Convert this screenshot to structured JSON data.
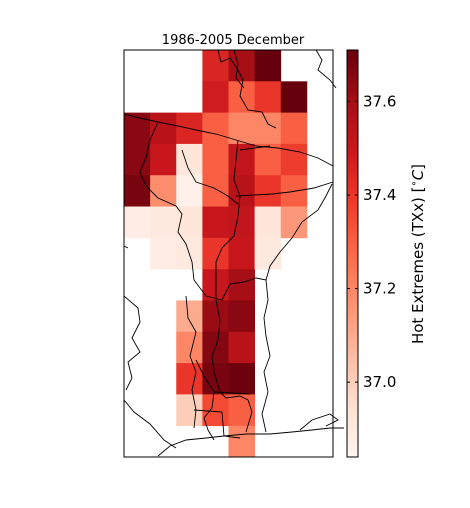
{
  "chart_data": {
    "type": "heatmap",
    "title": "1986-2005 December",
    "colorbar": {
      "label": "Hot Extremes (TXx) [$^\\circ C$]",
      "label_text": "Hot Extremes (TXx) [",
      "label_unit_symbol": "∘",
      "label_unit_letter": "C",
      "label_close": "]",
      "ticks": [
        "37.0",
        "37.2",
        "37.4",
        "37.6"
      ],
      "tick_values": [
        37.0,
        37.2,
        37.4,
        37.6
      ],
      "range": [
        36.84,
        37.71
      ],
      "colormap": "Reds"
    },
    "grid": {
      "columns": 8,
      "rows": 13,
      "missing": null,
      "values": [
        [
          null,
          null,
          null,
          37.45,
          37.6,
          37.71,
          null,
          null
        ],
        [
          null,
          null,
          null,
          37.48,
          37.3,
          37.4,
          37.71,
          null
        ],
        [
          37.65,
          37.55,
          37.45,
          37.3,
          37.2,
          37.2,
          37.3,
          null
        ],
        [
          37.65,
          37.5,
          36.92,
          37.3,
          37.52,
          37.3,
          37.38,
          null
        ],
        [
          37.68,
          37.18,
          36.86,
          37.3,
          37.55,
          37.4,
          37.3,
          null
        ],
        [
          36.88,
          36.9,
          36.92,
          37.5,
          37.52,
          36.92,
          37.15,
          null
        ],
        [
          null,
          36.88,
          36.9,
          37.4,
          37.5,
          36.9,
          null,
          null
        ],
        [
          null,
          null,
          null,
          37.5,
          37.6,
          null,
          null,
          null
        ],
        [
          null,
          null,
          37.1,
          37.62,
          37.65,
          null,
          null,
          null
        ],
        [
          null,
          null,
          37.2,
          37.66,
          37.55,
          null,
          null,
          null
        ],
        [
          null,
          null,
          37.4,
          37.68,
          37.7,
          null,
          null,
          null
        ],
        [
          null,
          null,
          37.0,
          37.35,
          37.3,
          null,
          null,
          null
        ],
        [
          null,
          null,
          null,
          null,
          37.2,
          null,
          null,
          null
        ]
      ]
    }
  }
}
